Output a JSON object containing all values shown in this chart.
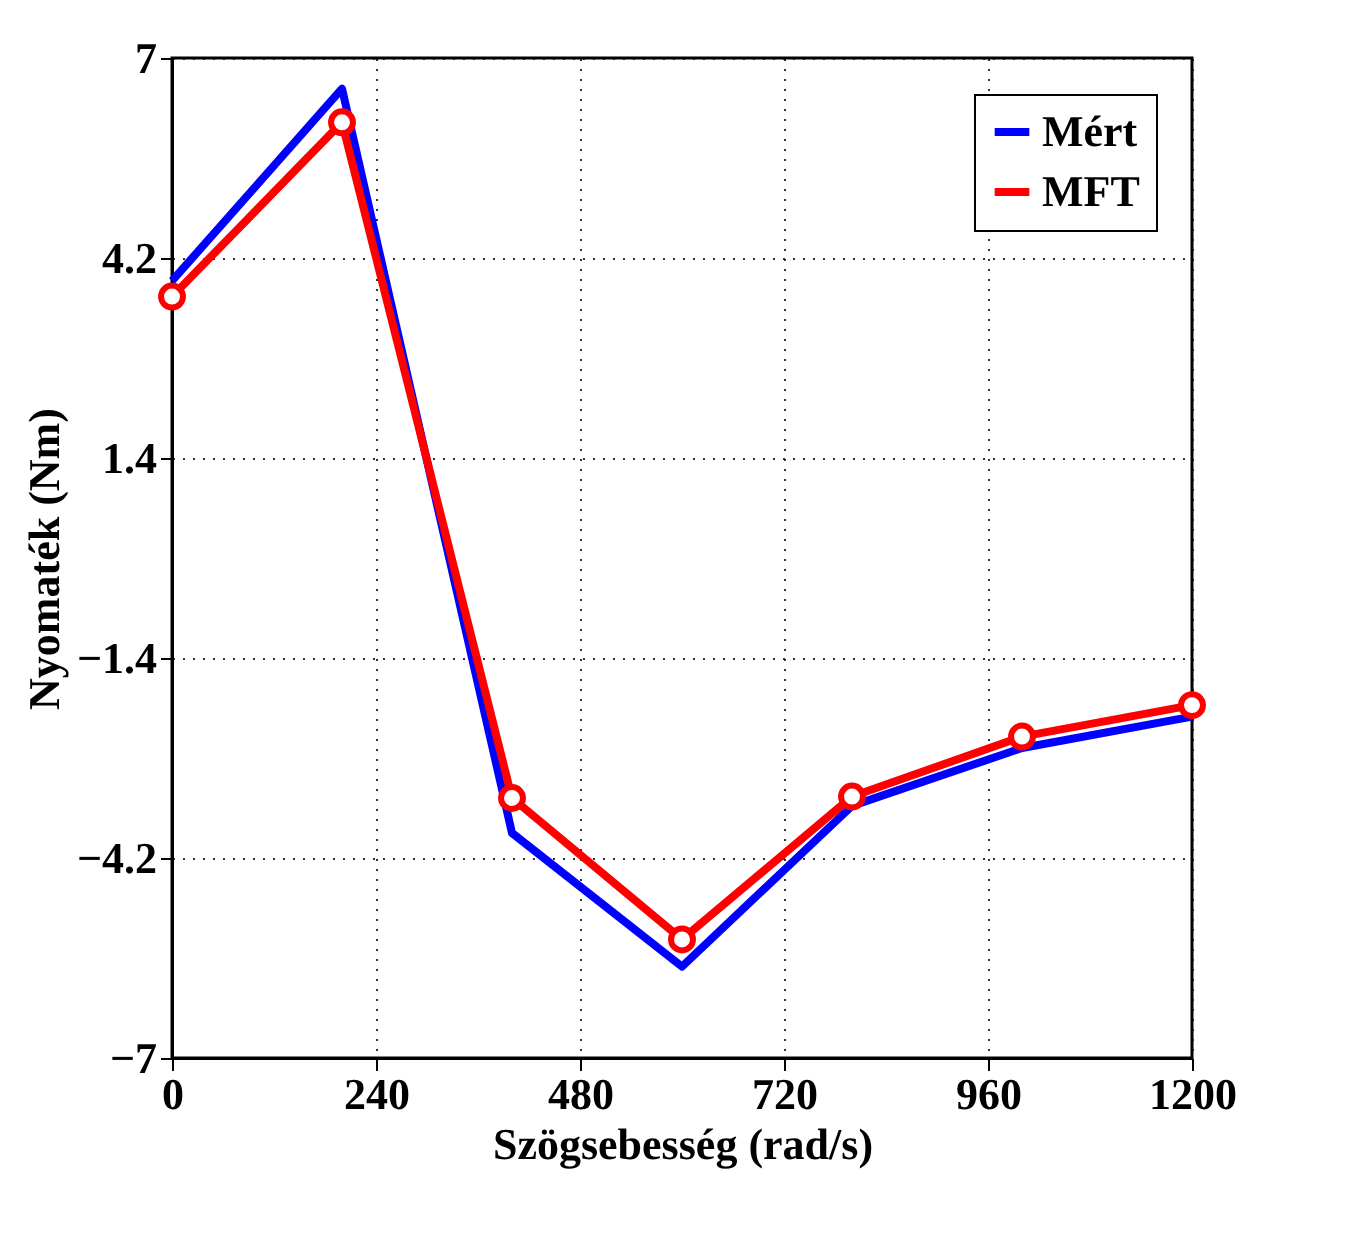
{
  "chart_data": {
    "type": "line",
    "xlabel": "Szögsebesség (rad/s)",
    "ylabel": "Nyomaték (Nm)",
    "x": [
      0,
      200,
      400,
      600,
      800,
      1000,
      1200
    ],
    "series": [
      {
        "name": "Mért",
        "color": "#0000ff",
        "marker": "none",
        "values": [
          3.88,
          6.57,
          -3.85,
          -5.72,
          -3.47,
          -2.66,
          -2.22
        ]
      },
      {
        "name": "MFT",
        "color": "#ff0000",
        "marker": "circle",
        "values": [
          3.66,
          6.1,
          -3.36,
          -5.34,
          -3.34,
          -2.5,
          -2.06
        ]
      }
    ],
    "xlim": [
      0,
      1200
    ],
    "xticks": [
      0,
      240,
      480,
      720,
      960,
      1200
    ],
    "ylim": [
      -7,
      7
    ],
    "yticks": [
      -7,
      -4.2,
      -1.4,
      1.4,
      4.2,
      7
    ],
    "grid": true,
    "legend": "top right",
    "line_style": "solid"
  }
}
